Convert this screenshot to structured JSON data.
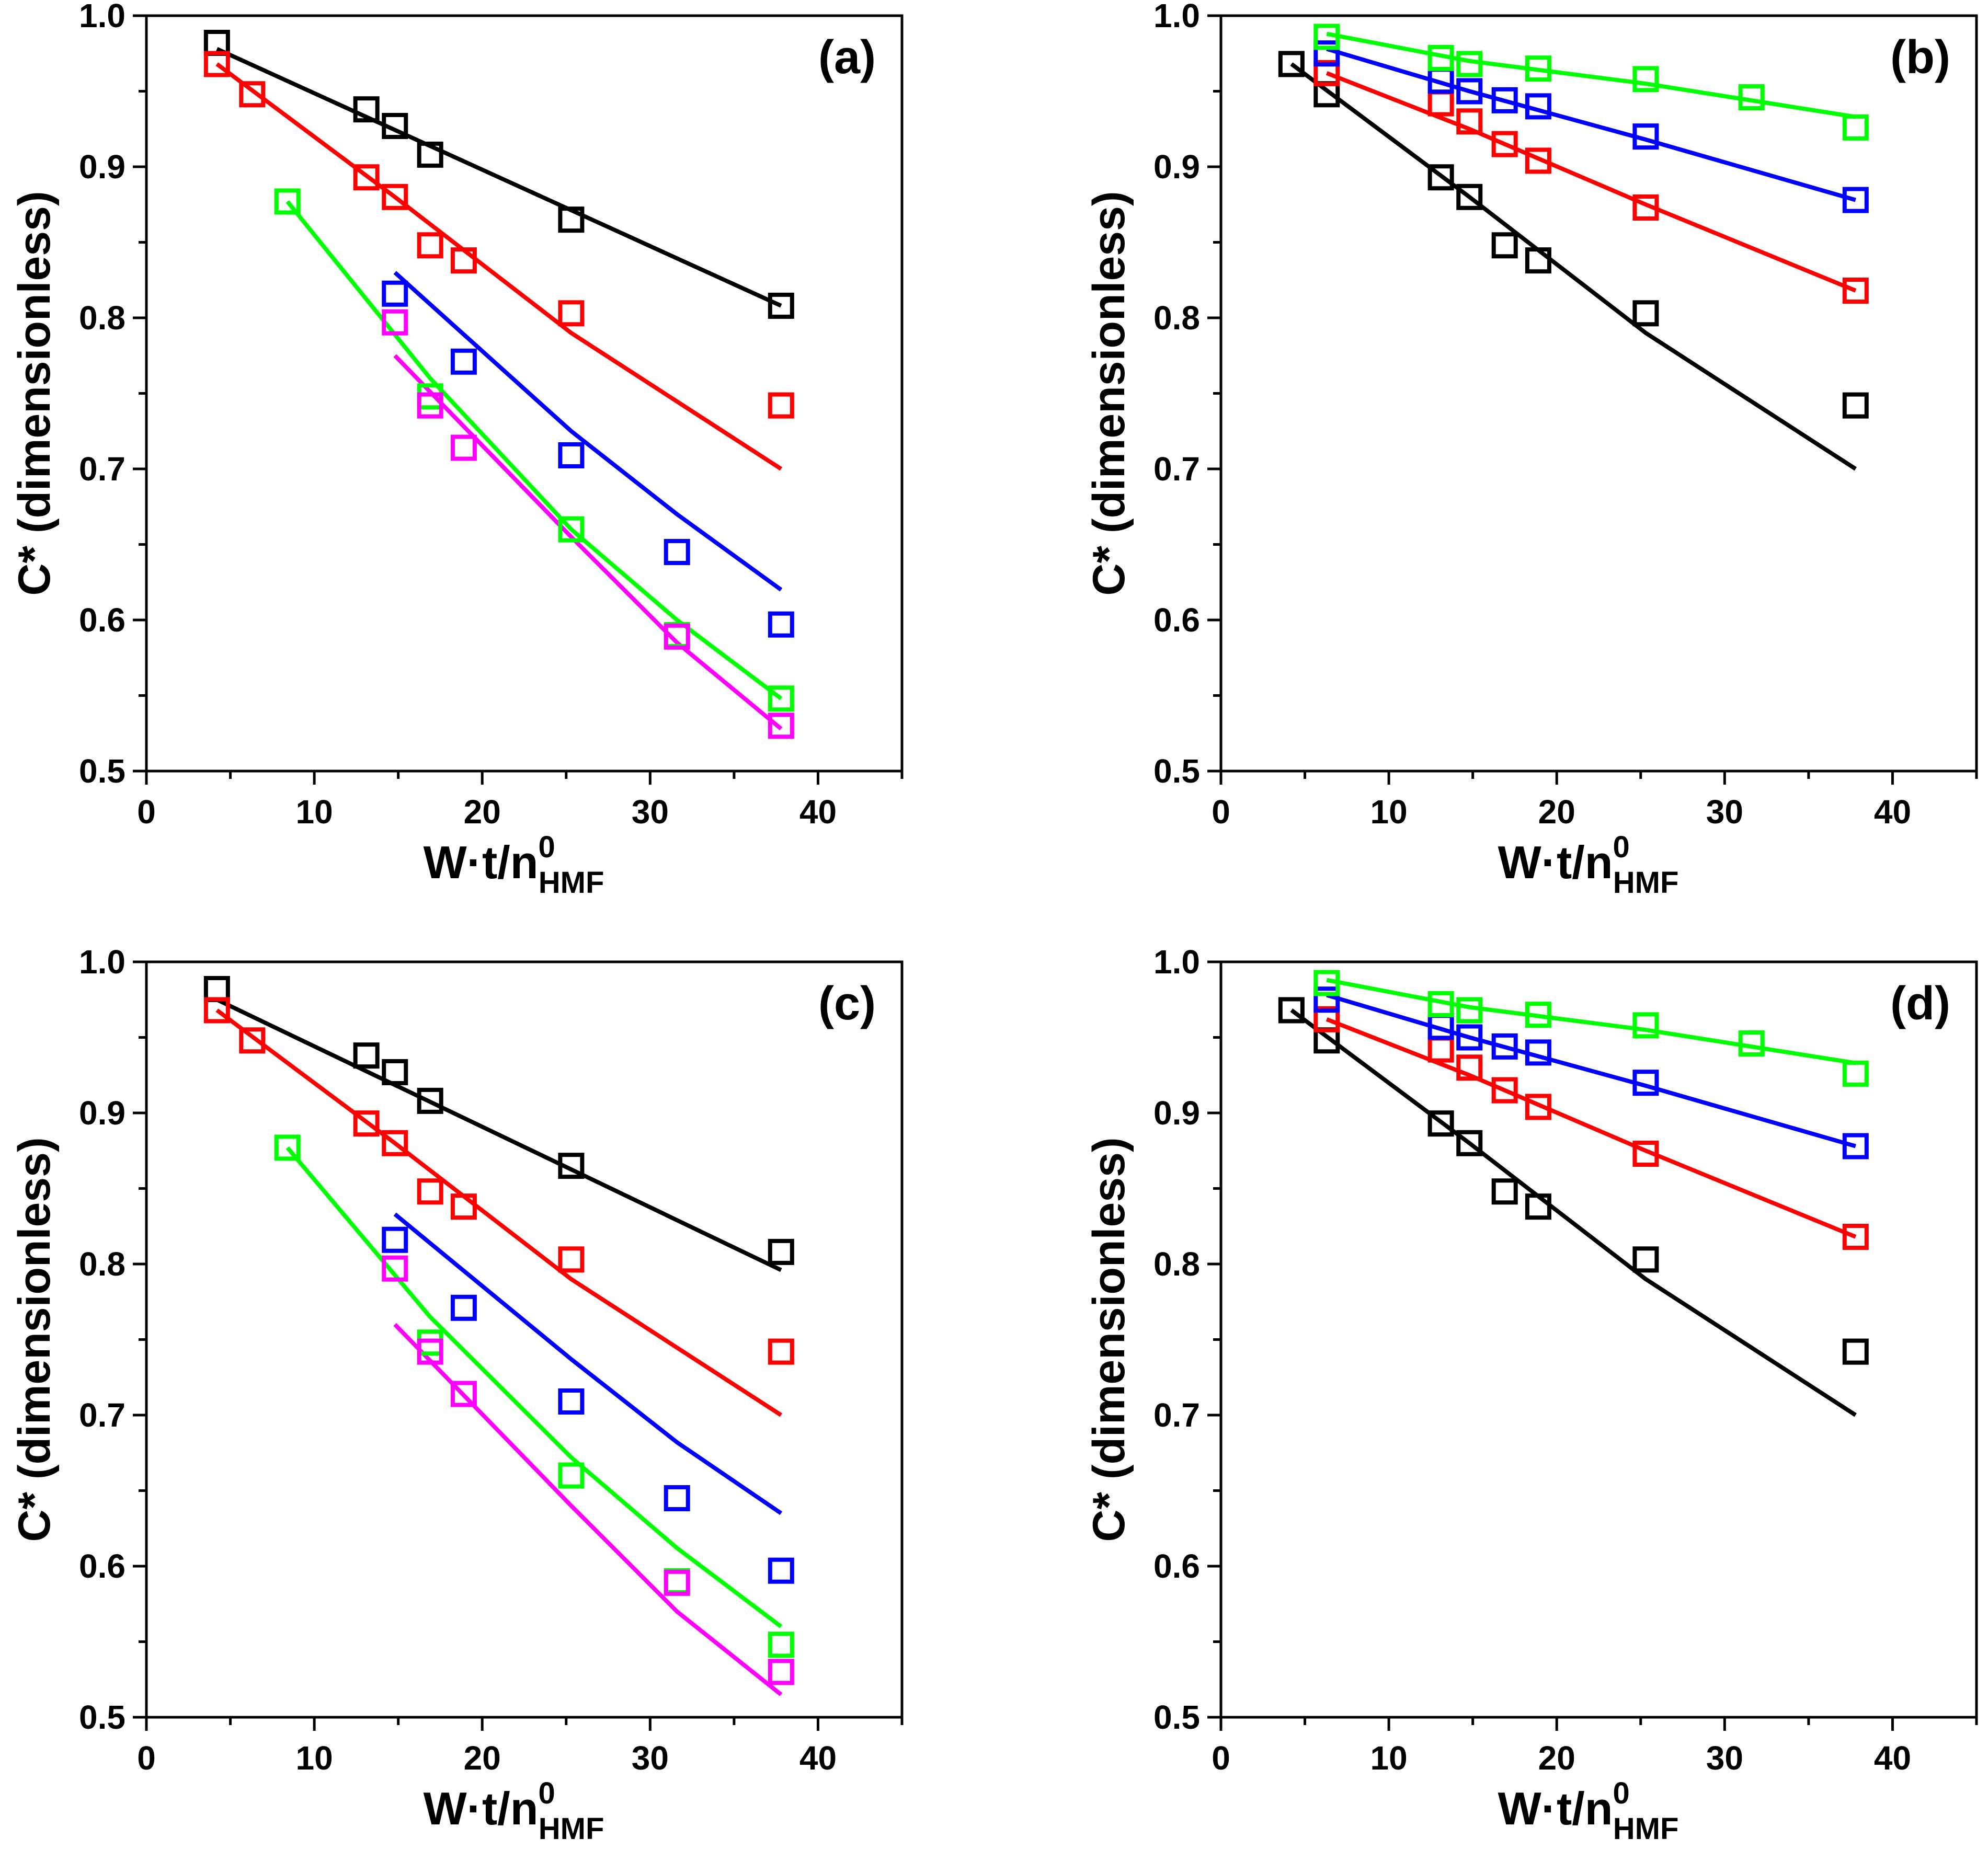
{
  "figure": {
    "panels": [
      {
        "label": "(a)",
        "xlabel_main": "W·t/n",
        "xlabel_sup": "0",
        "xlabel_sub": "HMF",
        "ylabel": "C* (dimensionless)",
        "xlim": [
          0,
          45
        ],
        "ylim": [
          0.5,
          1.0
        ],
        "xticks": [
          "0",
          "10",
          "20",
          "30",
          "40"
        ],
        "yticks": [
          "0.5",
          "0.6",
          "0.7",
          "0.8",
          "0.9",
          "1.0"
        ],
        "series": [
          {
            "color": "#000000",
            "points": [
              [
                4.2,
                0.982
              ],
              [
                13.1,
                0.938
              ],
              [
                14.8,
                0.927
              ],
              [
                16.9,
                0.908
              ],
              [
                25.3,
                0.865
              ],
              [
                37.8,
                0.808
              ]
            ],
            "fit": [
              [
                4.2,
                0.978
              ],
              [
                37.8,
                0.808
              ]
            ]
          },
          {
            "color": "#ff0000",
            "points": [
              [
                4.2,
                0.968
              ],
              [
                6.3,
                0.948
              ],
              [
                13.1,
                0.893
              ],
              [
                14.8,
                0.88
              ],
              [
                16.9,
                0.848
              ],
              [
                18.9,
                0.838
              ],
              [
                25.3,
                0.803
              ],
              [
                37.8,
                0.742
              ]
            ],
            "fit": [
              [
                4.2,
                0.968
              ],
              [
                14.8,
                0.88
              ],
              [
                25.3,
                0.79
              ],
              [
                37.8,
                0.7
              ]
            ]
          },
          {
            "color": "#0000ff",
            "points": [
              [
                14.8,
                0.816
              ],
              [
                18.9,
                0.771
              ],
              [
                25.3,
                0.709
              ],
              [
                31.6,
                0.645
              ],
              [
                37.8,
                0.597
              ]
            ],
            "fit": [
              [
                14.8,
                0.83
              ],
              [
                25.3,
                0.725
              ],
              [
                31.6,
                0.67
              ],
              [
                37.8,
                0.62
              ]
            ]
          },
          {
            "color": "#00ff00",
            "points": [
              [
                8.4,
                0.877
              ],
              [
                16.9,
                0.748
              ],
              [
                25.3,
                0.66
              ],
              [
                31.6,
                0.59
              ],
              [
                37.8,
                0.548
              ]
            ],
            "fit": [
              [
                8.4,
                0.877
              ],
              [
                16.9,
                0.76
              ],
              [
                25.3,
                0.66
              ],
              [
                31.6,
                0.6
              ],
              [
                37.8,
                0.548
              ]
            ]
          },
          {
            "color": "#ff00ff",
            "points": [
              [
                14.8,
                0.797
              ],
              [
                16.9,
                0.742
              ],
              [
                18.9,
                0.714
              ],
              [
                31.6,
                0.589
              ],
              [
                37.8,
                0.53
              ]
            ],
            "fit": [
              [
                14.8,
                0.775
              ],
              [
                25.3,
                0.655
              ],
              [
                31.6,
                0.585
              ],
              [
                37.8,
                0.528
              ]
            ]
          }
        ]
      },
      {
        "label": "(b)",
        "xlabel_main": "W·t/n",
        "xlabel_sup": "0",
        "xlabel_sub": "HMF",
        "ylabel": "C* (dimensionless)",
        "xlim": [
          0,
          45
        ],
        "ylim": [
          0.5,
          1.0
        ],
        "xticks": [
          "0",
          "10",
          "20",
          "30",
          "40"
        ],
        "yticks": [
          "0.5",
          "0.6",
          "0.7",
          "0.8",
          "0.9",
          "1.0"
        ],
        "series": [
          {
            "color": "#000000",
            "points": [
              [
                4.2,
                0.968
              ],
              [
                6.3,
                0.948
              ],
              [
                13.1,
                0.893
              ],
              [
                14.8,
                0.88
              ],
              [
                16.9,
                0.848
              ],
              [
                18.9,
                0.838
              ],
              [
                25.3,
                0.803
              ],
              [
                37.8,
                0.742
              ]
            ],
            "fit": [
              [
                4.2,
                0.968
              ],
              [
                14.8,
                0.88
              ],
              [
                25.3,
                0.79
              ],
              [
                37.8,
                0.7
              ]
            ]
          },
          {
            "color": "#ff0000",
            "points": [
              [
                6.3,
                0.962
              ],
              [
                13.1,
                0.942
              ],
              [
                14.8,
                0.93
              ],
              [
                16.9,
                0.915
              ],
              [
                18.9,
                0.904
              ],
              [
                25.3,
                0.873
              ],
              [
                37.8,
                0.818
              ]
            ],
            "fit": [
              [
                6.3,
                0.962
              ],
              [
                14.8,
                0.925
              ],
              [
                25.3,
                0.875
              ],
              [
                37.8,
                0.818
              ]
            ]
          },
          {
            "color": "#0000ff",
            "points": [
              [
                6.3,
                0.975
              ],
              [
                13.1,
                0.957
              ],
              [
                14.8,
                0.95
              ],
              [
                16.9,
                0.944
              ],
              [
                18.9,
                0.94
              ],
              [
                25.3,
                0.92
              ],
              [
                37.8,
                0.878
              ]
            ],
            "fit": [
              [
                6.3,
                0.978
              ],
              [
                14.8,
                0.95
              ],
              [
                25.3,
                0.918
              ],
              [
                37.8,
                0.878
              ]
            ]
          },
          {
            "color": "#00ff00",
            "points": [
              [
                6.3,
                0.986
              ],
              [
                13.1,
                0.972
              ],
              [
                14.8,
                0.968
              ],
              [
                18.9,
                0.965
              ],
              [
                25.3,
                0.958
              ],
              [
                31.6,
                0.946
              ],
              [
                37.8,
                0.926
              ]
            ],
            "fit": [
              [
                6.3,
                0.988
              ],
              [
                14.8,
                0.97
              ],
              [
                25.3,
                0.955
              ],
              [
                37.8,
                0.933
              ]
            ]
          }
        ]
      },
      {
        "label": "(c)",
        "xlabel_main": "W·t/n",
        "xlabel_sup": "0",
        "xlabel_sub": "HMF",
        "ylabel": "C* (dimensionless)",
        "xlim": [
          0,
          45
        ],
        "ylim": [
          0.5,
          1.0
        ],
        "xticks": [
          "0",
          "10",
          "20",
          "30",
          "40"
        ],
        "yticks": [
          "0.5",
          "0.6",
          "0.7",
          "0.8",
          "0.9",
          "1.0"
        ],
        "series": [
          {
            "color": "#000000",
            "points": [
              [
                4.2,
                0.982
              ],
              [
                13.1,
                0.938
              ],
              [
                14.8,
                0.927
              ],
              [
                16.9,
                0.908
              ],
              [
                25.3,
                0.865
              ],
              [
                37.8,
                0.808
              ]
            ],
            "fit": [
              [
                4.2,
                0.975
              ],
              [
                37.8,
                0.796
              ]
            ]
          },
          {
            "color": "#ff0000",
            "points": [
              [
                4.2,
                0.968
              ],
              [
                6.3,
                0.948
              ],
              [
                13.1,
                0.893
              ],
              [
                14.8,
                0.88
              ],
              [
                16.9,
                0.848
              ],
              [
                18.9,
                0.838
              ],
              [
                25.3,
                0.803
              ],
              [
                37.8,
                0.742
              ]
            ],
            "fit": [
              [
                4.2,
                0.968
              ],
              [
                14.8,
                0.88
              ],
              [
                25.3,
                0.79
              ],
              [
                37.8,
                0.7
              ]
            ]
          },
          {
            "color": "#0000ff",
            "points": [
              [
                14.8,
                0.816
              ],
              [
                18.9,
                0.771
              ],
              [
                25.3,
                0.709
              ],
              [
                31.6,
                0.645
              ],
              [
                37.8,
                0.597
              ]
            ],
            "fit": [
              [
                14.8,
                0.833
              ],
              [
                25.3,
                0.737
              ],
              [
                31.6,
                0.682
              ],
              [
                37.8,
                0.635
              ]
            ]
          },
          {
            "color": "#00ff00",
            "points": [
              [
                8.4,
                0.877
              ],
              [
                16.9,
                0.748
              ],
              [
                25.3,
                0.66
              ],
              [
                31.6,
                0.59
              ],
              [
                37.8,
                0.548
              ]
            ],
            "fit": [
              [
                8.4,
                0.877
              ],
              [
                16.9,
                0.765
              ],
              [
                25.3,
                0.672
              ],
              [
                31.6,
                0.612
              ],
              [
                37.8,
                0.56
              ]
            ]
          },
          {
            "color": "#ff00ff",
            "points": [
              [
                14.8,
                0.797
              ],
              [
                16.9,
                0.742
              ],
              [
                18.9,
                0.714
              ],
              [
                31.6,
                0.589
              ],
              [
                37.8,
                0.53
              ]
            ],
            "fit": [
              [
                14.8,
                0.76
              ],
              [
                25.3,
                0.64
              ],
              [
                31.6,
                0.57
              ],
              [
                37.8,
                0.515
              ]
            ]
          }
        ]
      },
      {
        "label": "(d)",
        "xlabel_main": "W·t/n",
        "xlabel_sup": "0",
        "xlabel_sub": "HMF",
        "ylabel": "C* (dimensionless)",
        "xlim": [
          0,
          45
        ],
        "ylim": [
          0.5,
          1.0
        ],
        "xticks": [
          "0",
          "10",
          "20",
          "30",
          "40"
        ],
        "yticks": [
          "0.5",
          "0.6",
          "0.7",
          "0.8",
          "0.9",
          "1.0"
        ],
        "series": [
          {
            "color": "#000000",
            "points": [
              [
                4.2,
                0.968
              ],
              [
                6.3,
                0.948
              ],
              [
                13.1,
                0.893
              ],
              [
                14.8,
                0.88
              ],
              [
                16.9,
                0.848
              ],
              [
                18.9,
                0.838
              ],
              [
                25.3,
                0.803
              ],
              [
                37.8,
                0.742
              ]
            ],
            "fit": [
              [
                4.2,
                0.968
              ],
              [
                14.8,
                0.88
              ],
              [
                25.3,
                0.79
              ],
              [
                37.8,
                0.7
              ]
            ]
          },
          {
            "color": "#ff0000",
            "points": [
              [
                6.3,
                0.962
              ],
              [
                13.1,
                0.942
              ],
              [
                14.8,
                0.93
              ],
              [
                16.9,
                0.915
              ],
              [
                18.9,
                0.904
              ],
              [
                25.3,
                0.873
              ],
              [
                37.8,
                0.818
              ]
            ],
            "fit": [
              [
                6.3,
                0.962
              ],
              [
                14.8,
                0.925
              ],
              [
                25.3,
                0.875
              ],
              [
                37.8,
                0.818
              ]
            ]
          },
          {
            "color": "#0000ff",
            "points": [
              [
                6.3,
                0.975
              ],
              [
                13.1,
                0.957
              ],
              [
                14.8,
                0.95
              ],
              [
                16.9,
                0.944
              ],
              [
                18.9,
                0.94
              ],
              [
                25.3,
                0.92
              ],
              [
                37.8,
                0.878
              ]
            ],
            "fit": [
              [
                6.3,
                0.978
              ],
              [
                14.8,
                0.95
              ],
              [
                25.3,
                0.918
              ],
              [
                37.8,
                0.878
              ]
            ]
          },
          {
            "color": "#00ff00",
            "points": [
              [
                6.3,
                0.986
              ],
              [
                13.1,
                0.972
              ],
              [
                14.8,
                0.968
              ],
              [
                18.9,
                0.965
              ],
              [
                25.3,
                0.958
              ],
              [
                31.6,
                0.946
              ],
              [
                37.8,
                0.926
              ]
            ],
            "fit": [
              [
                6.3,
                0.988
              ],
              [
                14.8,
                0.97
              ],
              [
                25.3,
                0.955
              ],
              [
                37.8,
                0.933
              ]
            ]
          }
        ]
      }
    ]
  },
  "chart_data": [
    {
      "type": "scatter",
      "title": "(a)",
      "xlabel": "W·t/n0HMF",
      "ylabel": "C* (dimensionless)",
      "xlim": [
        0,
        45
      ],
      "ylim": [
        0.5,
        1.0
      ]
    },
    {
      "type": "scatter",
      "title": "(b)",
      "xlabel": "W·t/n0HMF",
      "ylabel": "C* (dimensionless)",
      "xlim": [
        0,
        45
      ],
      "ylim": [
        0.5,
        1.0
      ]
    },
    {
      "type": "scatter",
      "title": "(c)",
      "xlabel": "W·t/n0HMF",
      "ylabel": "C* (dimensionless)",
      "xlim": [
        0,
        45
      ],
      "ylim": [
        0.5,
        1.0
      ]
    },
    {
      "type": "scatter",
      "title": "(d)",
      "xlabel": "W·t/n0HMF",
      "ylabel": "C* (dimensionless)",
      "xlim": [
        0,
        45
      ],
      "ylim": [
        0.5,
        1.0
      ]
    }
  ]
}
